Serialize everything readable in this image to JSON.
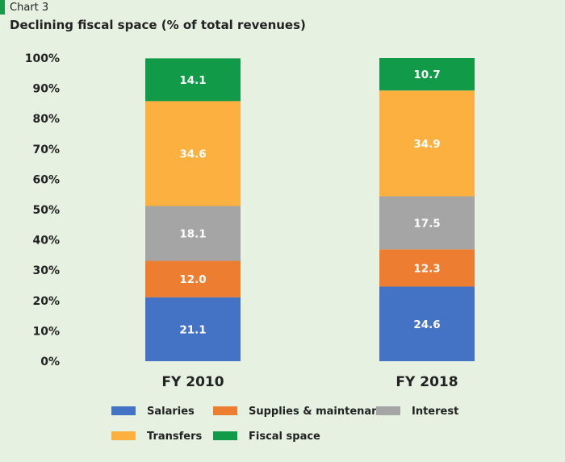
{
  "header": {
    "label": "Chart 3",
    "title": "Declining fiscal space (% of total revenues)"
  },
  "chart_data": {
    "type": "bar",
    "stacked": true,
    "title": "Declining fiscal space (% of total revenues)",
    "xlabel": "",
    "ylabel": "",
    "categories": [
      "FY 2010",
      "FY 2018"
    ],
    "y_tick_labels": [
      "0%",
      "10%",
      "20%",
      "30%",
      "40%",
      "50%",
      "60%",
      "70%",
      "80%",
      "90%",
      "100%"
    ],
    "ylim": [
      0,
      100
    ],
    "grid": false,
    "legend_placement": "bottom",
    "series": [
      {
        "name": "Salaries",
        "color": "#4472c4",
        "values": [
          21.1,
          24.6
        ]
      },
      {
        "name": "Supplies & maintenance",
        "color": "#ed7d31",
        "values": [
          12.0,
          12.3
        ]
      },
      {
        "name": "Interest",
        "color": "#a5a5a5",
        "values": [
          18.1,
          17.5
        ]
      },
      {
        "name": "Transfers",
        "color": "#fbb040",
        "values": [
          34.6,
          34.9
        ]
      },
      {
        "name": "Fiscal space",
        "color": "#119a48",
        "values": [
          14.1,
          10.7
        ]
      }
    ],
    "value_labels": [
      [
        "21.1",
        "24.6"
      ],
      [
        "12.0",
        "12.3"
      ],
      [
        "18.1",
        "17.5"
      ],
      [
        "34.6",
        "34.9"
      ],
      [
        "14.1",
        "10.7"
      ]
    ]
  }
}
